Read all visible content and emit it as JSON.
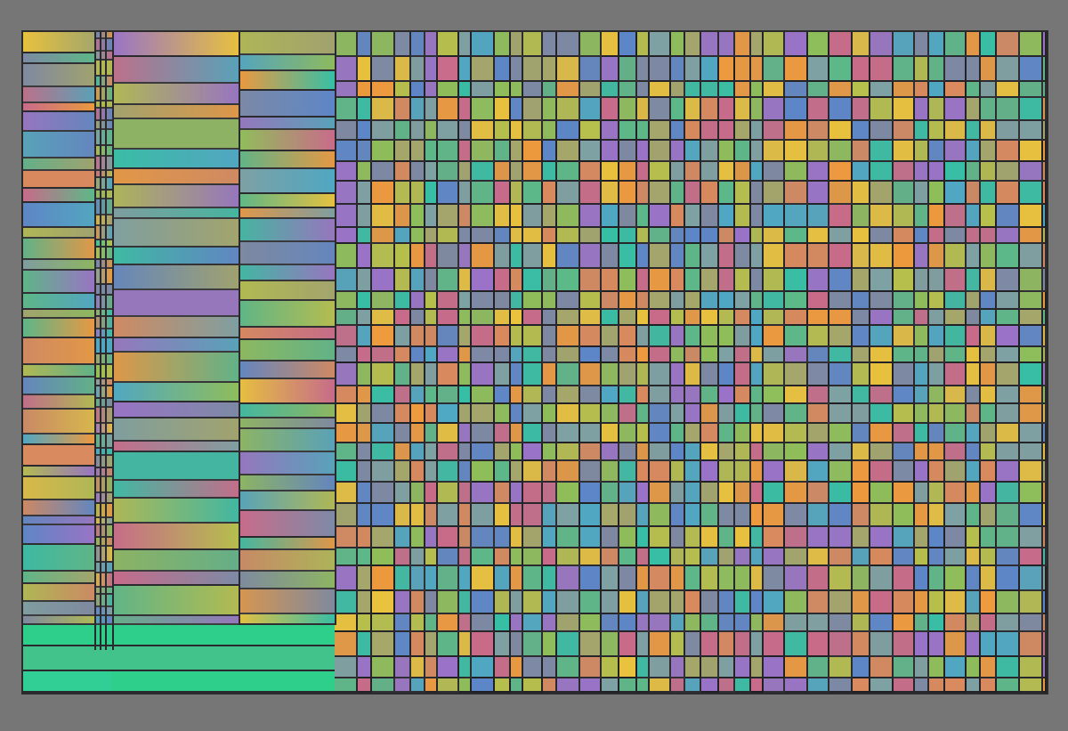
{
  "scene": {
    "kind": "abstract-color-grid",
    "background_color": "#767676",
    "frame_color": "#2b2b2b",
    "grid_line_color": "#1f1f24"
  },
  "palette": [
    "#e9c23e",
    "#ee9a3e",
    "#5d86c9",
    "#4fa8c4",
    "#8fbf5a",
    "#5cb988",
    "#c96b8a",
    "#9a73c9",
    "#7ea2a4",
    "#a6a86a",
    "#d98a5e",
    "#7d8aa6",
    "#36c0a6",
    "#b7c04c"
  ],
  "bottom_strip_colors": [
    "#2dcf8a",
    "#43c38c",
    "#31cf96"
  ]
}
